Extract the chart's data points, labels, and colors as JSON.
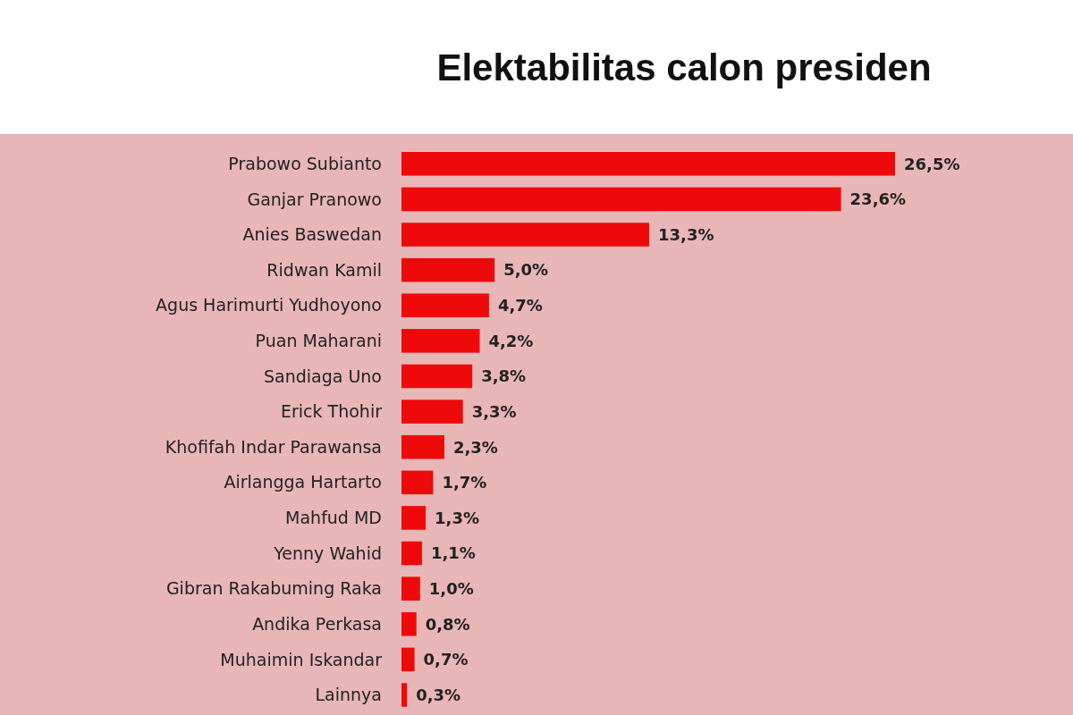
{
  "chart_data": {
    "type": "bar",
    "orientation": "horizontal",
    "title": "Elektabilitas calon presiden",
    "categories": [
      "Prabowo Subianto",
      "Ganjar Pranowo",
      "Anies Baswedan",
      "Ridwan Kamil",
      "Agus Harimurti Yudhoyono",
      "Puan Maharani",
      "Sandiaga Uno",
      "Erick Thohir",
      "Khofifah Indar Parawansa",
      "Airlangga Hartarto",
      "Mahfud MD",
      "Yenny Wahid",
      "Gibran Rakabuming Raka",
      "Andika Perkasa",
      "Muhaimin Iskandar",
      "Lainnya"
    ],
    "values": [
      26.5,
      23.6,
      13.3,
      5.0,
      4.7,
      4.2,
      3.8,
      3.3,
      2.3,
      1.7,
      1.3,
      1.1,
      1.0,
      0.8,
      0.7,
      0.3
    ],
    "value_labels": [
      "26,5%",
      "23,6%",
      "13,3%",
      "5,0%",
      "4,7%",
      "4,2%",
      "3,8%",
      "3,3%",
      "2,3%",
      "1,7%",
      "1,3%",
      "1,1%",
      "1,0%",
      "0,8%",
      "0,7%",
      "0,3%"
    ],
    "color": "#ee0a0a"
  }
}
